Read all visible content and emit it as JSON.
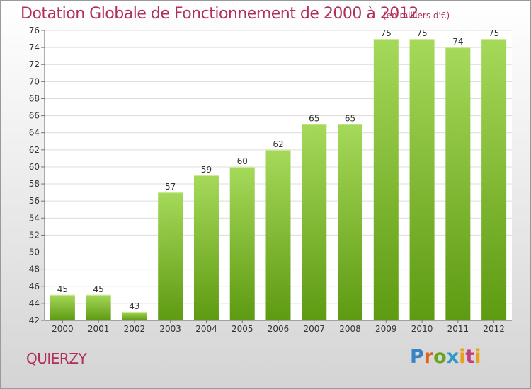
{
  "header": {
    "title": "Dotation Globale de Fonctionnement de 2000 à 2012",
    "subtitle": "(en milliers d'€)"
  },
  "footer": {
    "commune": "QUIERZY",
    "logo_text": "Proxiti"
  },
  "colors": {
    "title": "#b0305a",
    "bar_top": "#a6d95a",
    "bar_bottom": "#5e9a12",
    "axis": "#555555"
  },
  "chart_data": {
    "type": "bar",
    "title": "Dotation Globale de Fonctionnement de 2000 à 2012",
    "subtitle": "(en milliers d'€)",
    "xlabel": "",
    "ylabel": "",
    "categories": [
      "2000",
      "2001",
      "2002",
      "2003",
      "2004",
      "2005",
      "2006",
      "2007",
      "2008",
      "2009",
      "2010",
      "2011",
      "2012"
    ],
    "values": [
      45,
      45,
      43,
      57,
      59,
      60,
      62,
      65,
      65,
      75,
      75,
      74,
      75
    ],
    "ylim": [
      42,
      76
    ],
    "yticks": [
      42,
      44,
      46,
      48,
      50,
      52,
      54,
      56,
      58,
      60,
      62,
      64,
      66,
      68,
      70,
      72,
      74,
      76
    ],
    "grid": true,
    "legend": "none"
  }
}
